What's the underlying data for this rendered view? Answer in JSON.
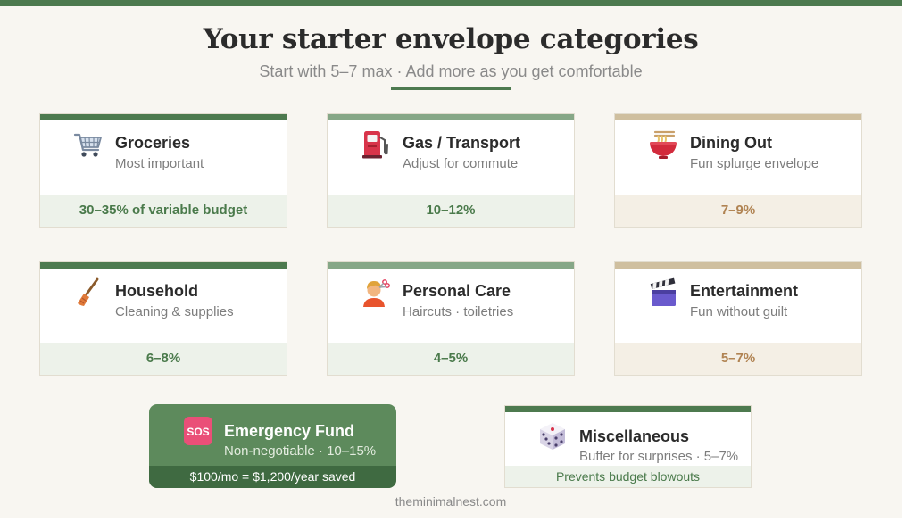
{
  "header": {
    "title": "Your starter envelope categories",
    "subtitle": "Start with 5–7 max · Add more as you get comfortable"
  },
  "colors": {
    "accent_green": "#4d7a4f",
    "sage": "#86a787",
    "tan": "#cfbf9f",
    "tan_text": "#b08352",
    "background": "#f8f6f1"
  },
  "categories": [
    {
      "icon": "shopping-cart-icon",
      "name": "Groceries",
      "desc": "Most important",
      "percent": "30–35% of variable budget"
    },
    {
      "icon": "fuel-pump-icon",
      "name": "Gas / Transport",
      "desc": "Adjust for commute",
      "percent": "10–12%"
    },
    {
      "icon": "noodle-bowl-icon",
      "name": "Dining Out",
      "desc": "Fun splurge envelope",
      "percent": "7–9%"
    },
    {
      "icon": "broom-icon",
      "name": "Household",
      "desc": "Cleaning & supplies",
      "percent": "6–8%"
    },
    {
      "icon": "haircut-icon",
      "name": "Personal Care",
      "desc": "Haircuts · toiletries",
      "percent": "4–5%"
    },
    {
      "icon": "clapperboard-icon",
      "name": "Entertainment",
      "desc": "Fun without guilt",
      "percent": "5–7%"
    }
  ],
  "emergency": {
    "icon": "sos-icon",
    "icon_text": "SOS",
    "name": "Emergency Fund",
    "desc": "Non-negotiable · 10–15%",
    "note": "$100/mo = $1,200/year saved"
  },
  "misc": {
    "icon": "dice-icon",
    "name": "Miscellaneous",
    "desc": "Buffer for surprises · 5–7%",
    "note": "Prevents budget blowouts"
  },
  "footer": {
    "site": "theminimalnest.com"
  }
}
